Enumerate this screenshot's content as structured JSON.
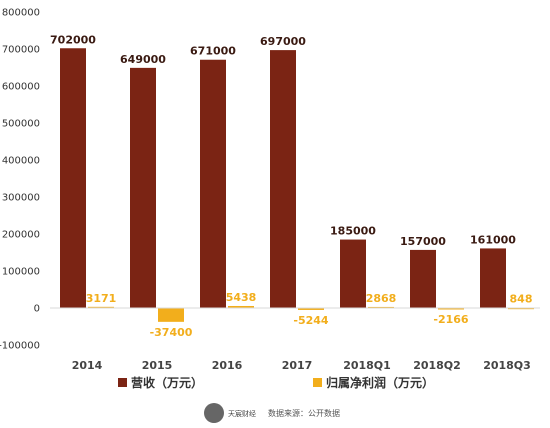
{
  "chart_data": {
    "type": "bar",
    "categories": [
      "2014",
      "2015",
      "2016",
      "2017",
      "2018Q1",
      "2018Q2",
      "2018Q3"
    ],
    "series": [
      {
        "name": "营收（万元）",
        "color": "#7B2414",
        "values": [
          702000,
          649000,
          671000,
          697000,
          185000,
          157000,
          161000
        ]
      },
      {
        "name": "归属净利润（万元）",
        "color": "#F2AE1C",
        "values": [
          3171,
          -37400,
          5438,
          -5244,
          2868,
          -2166,
          848
        ]
      }
    ],
    "ylim": [
      -100000,
      800000
    ],
    "yticks": [
      -100000,
      0,
      100000,
      200000,
      300000,
      400000,
      500000,
      600000,
      700000,
      800000
    ],
    "grid": false,
    "legend_position": "bottom"
  },
  "footer": {
    "logo_text": "天宸财经",
    "source": "数据来源：公开数据"
  }
}
